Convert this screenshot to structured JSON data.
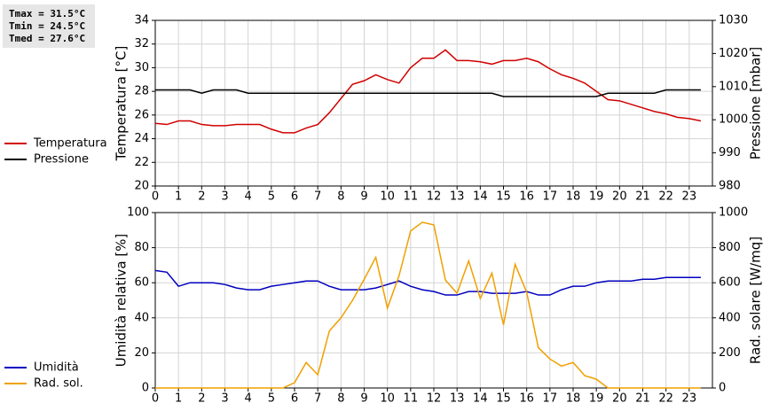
{
  "stats": [
    "Tmax = 31.5°C",
    "Tmin = 24.5°C",
    "Tmed = 27.6°C"
  ],
  "chart_data": [
    {
      "type": "line",
      "ylabel": "Temperatura [°C]",
      "y2label": "Pressione [mbar]",
      "legend": "left",
      "grid": true,
      "x": [
        0,
        0.5,
        1,
        1.5,
        2,
        2.5,
        3,
        3.5,
        4,
        4.5,
        5,
        5.5,
        6,
        6.5,
        7,
        7.5,
        8,
        8.5,
        9,
        9.5,
        10,
        10.5,
        11,
        11.5,
        12,
        12.5,
        13,
        13.5,
        14,
        14.5,
        15,
        15.5,
        16,
        16.5,
        17,
        17.5,
        18,
        18.5,
        19,
        19.5,
        20,
        20.5,
        21,
        21.5,
        22,
        22.5,
        23,
        23.5
      ],
      "xlim": [
        0,
        24
      ],
      "xticks": [
        0,
        1,
        2,
        3,
        4,
        5,
        6,
        7,
        8,
        9,
        10,
        11,
        12,
        13,
        14,
        15,
        16,
        17,
        18,
        19,
        20,
        21,
        22,
        23
      ],
      "ylim": [
        20,
        34
      ],
      "yticks": [
        20,
        22,
        24,
        26,
        28,
        30,
        32,
        34
      ],
      "y2lim": [
        980,
        1030
      ],
      "y2ticks": [
        980,
        990,
        1000,
        1010,
        1020,
        1030
      ],
      "series": [
        {
          "name": "Temperatura",
          "color": "#d00000",
          "values": [
            25.3,
            25.2,
            25.5,
            25.5,
            25.2,
            25.1,
            25.1,
            25.2,
            25.2,
            25.2,
            24.8,
            24.5,
            24.5,
            24.9,
            25.2,
            26.2,
            27.4,
            28.6,
            28.9,
            29.4,
            29.0,
            28.7,
            30.0,
            30.8,
            30.8,
            31.5,
            30.6,
            30.6,
            30.5,
            30.3,
            30.6,
            30.6,
            30.8,
            30.5,
            29.9,
            29.4,
            29.1,
            28.7,
            28.0,
            27.3,
            27.2,
            26.9,
            26.6,
            26.3,
            26.1,
            25.8,
            25.7,
            25.5
          ]
        },
        {
          "name": "Pressione",
          "color": "#000000",
          "axis": "y2",
          "values": [
            1009,
            1009,
            1009,
            1009,
            1008,
            1009,
            1009,
            1009,
            1008,
            1008,
            1008,
            1008,
            1008,
            1008,
            1008,
            1008,
            1008,
            1008,
            1008,
            1008,
            1008,
            1008,
            1008,
            1008,
            1008,
            1008,
            1008,
            1008,
            1008,
            1008,
            1007,
            1007,
            1007,
            1007,
            1007,
            1007,
            1007,
            1007,
            1007,
            1008,
            1008,
            1008,
            1008,
            1008,
            1009,
            1009,
            1009,
            1009
          ]
        }
      ]
    },
    {
      "type": "line",
      "ylabel": "Umidità relativa [%]",
      "y2label": "Rad. solare [W/mq]",
      "legend": "left",
      "grid": true,
      "x": [
        0,
        0.5,
        1,
        1.5,
        2,
        2.5,
        3,
        3.5,
        4,
        4.5,
        5,
        5.5,
        6,
        6.5,
        7,
        7.5,
        8,
        8.5,
        9,
        9.5,
        10,
        10.5,
        11,
        11.5,
        12,
        12.5,
        13,
        13.5,
        14,
        14.5,
        15,
        15.5,
        16,
        16.5,
        17,
        17.5,
        18,
        18.5,
        19,
        19.5,
        20,
        20.5,
        21,
        21.5,
        22,
        22.5,
        23,
        23.5
      ],
      "xlim": [
        0,
        24
      ],
      "xticks": [
        0,
        1,
        2,
        3,
        4,
        5,
        6,
        7,
        8,
        9,
        10,
        11,
        12,
        13,
        14,
        15,
        16,
        17,
        18,
        19,
        20,
        21,
        22,
        23
      ],
      "ylim": [
        0,
        100
      ],
      "yticks": [
        0,
        20,
        40,
        60,
        80,
        100
      ],
      "y2lim": [
        0,
        1000
      ],
      "y2ticks": [
        0,
        200,
        400,
        600,
        800,
        1000
      ],
      "series": [
        {
          "name": "Umidità",
          "color": "#0000c0",
          "values": [
            67,
            66,
            58,
            60,
            60,
            60,
            59,
            57,
            56,
            56,
            58,
            59,
            60,
            61,
            61,
            58,
            56,
            56,
            56,
            57,
            59,
            61,
            58,
            56,
            55,
            53,
            53,
            55,
            55,
            54,
            54,
            54,
            55,
            53,
            53,
            56,
            58,
            58,
            60,
            61,
            61,
            61,
            62,
            62,
            63,
            63,
            63,
            63
          ]
        },
        {
          "name": "Rad. sol.",
          "color": "#f0a000",
          "axis": "y2",
          "values": [
            0,
            0,
            0,
            0,
            0,
            0,
            0,
            0,
            0,
            0,
            0,
            0,
            30,
            145,
            75,
            325,
            400,
            500,
            620,
            745,
            455,
            640,
            895,
            945,
            930,
            615,
            540,
            725,
            510,
            655,
            360,
            705,
            545,
            230,
            165,
            125,
            145,
            70,
            50,
            0,
            0,
            0,
            0,
            0,
            0,
            0,
            0,
            0
          ]
        }
      ]
    }
  ]
}
